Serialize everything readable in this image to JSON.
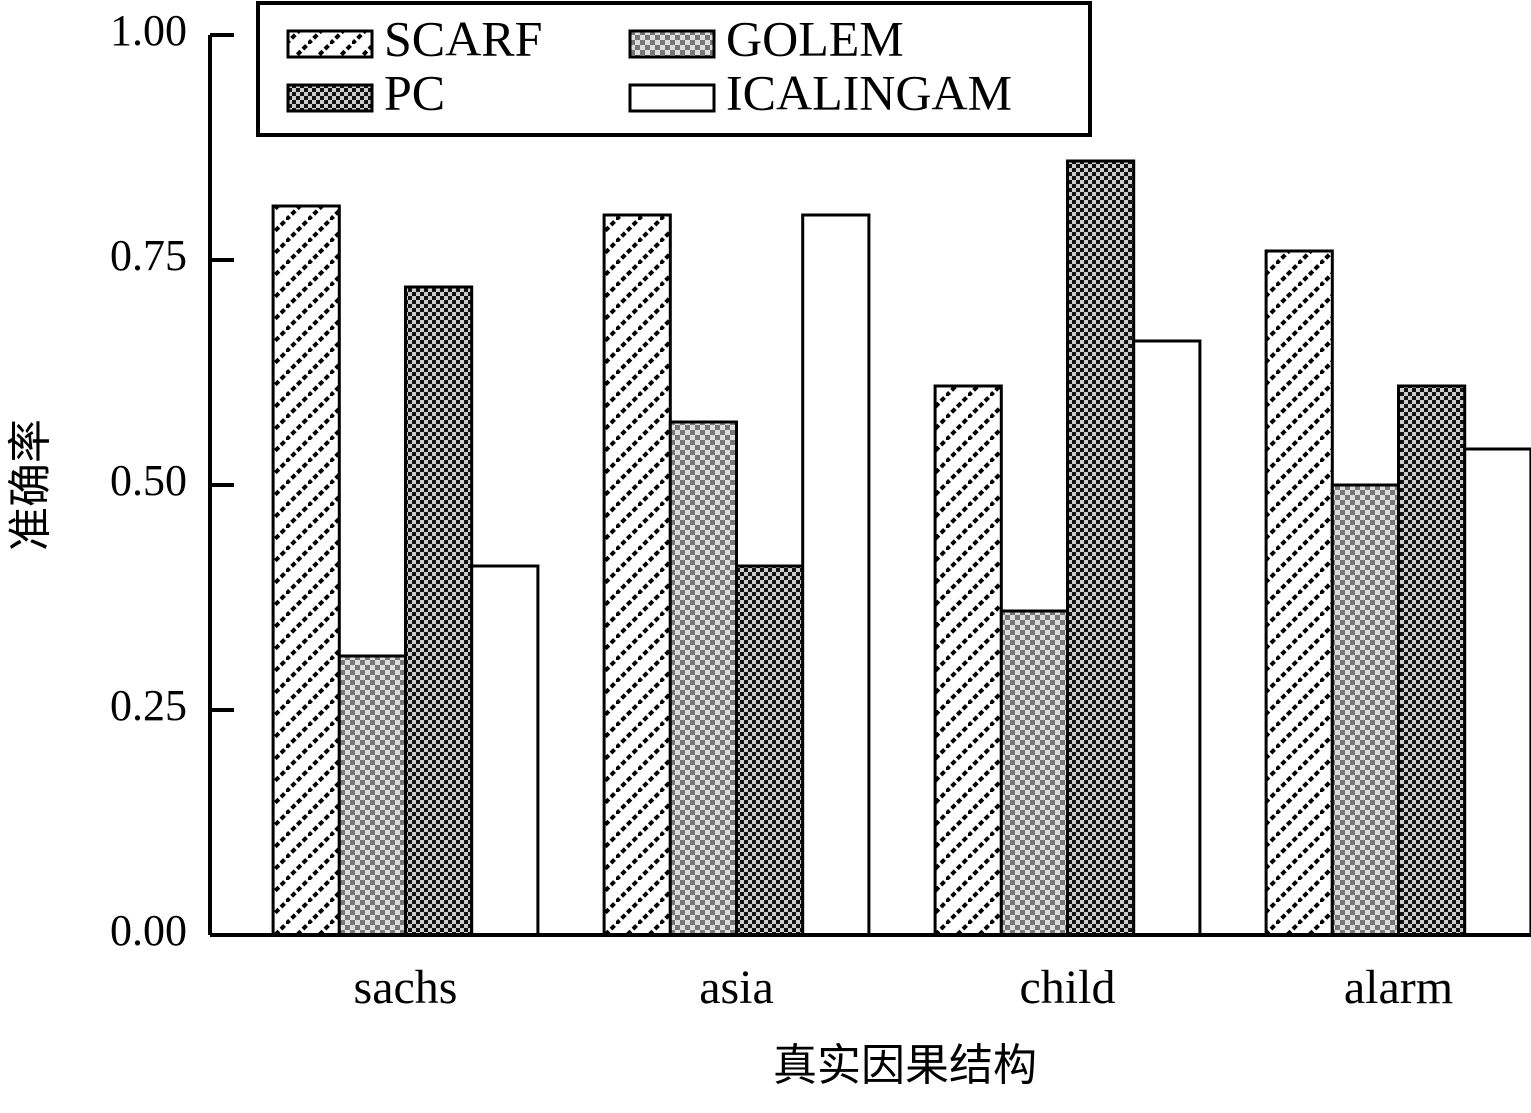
{
  "chart_data": {
    "type": "bar",
    "x_label": "真实因果结构",
    "y_label": "准确率",
    "categories": [
      "sachs",
      "asia",
      "child",
      "alarm"
    ],
    "series": [
      {
        "name": "SCARF",
        "color": "#000000",
        "pattern": "diagonal",
        "values": [
          0.81,
          0.8,
          0.61,
          0.76
        ]
      },
      {
        "name": "GOLEM",
        "color": "#777777",
        "pattern": "checker",
        "values": [
          0.31,
          0.57,
          0.36,
          0.5
        ]
      },
      {
        "name": "PC",
        "color": "#000000",
        "pattern": "dense-checker",
        "values": [
          0.72,
          0.41,
          0.86,
          0.61
        ]
      },
      {
        "name": "ICALINGAM",
        "color": "#ffffff",
        "pattern": "none",
        "values": [
          0.41,
          0.8,
          0.66,
          0.54
        ]
      }
    ],
    "ylim": [
      0,
      1
    ],
    "yticks": [
      {
        "value": 0,
        "label": "0.00"
      },
      {
        "value": 0.25,
        "label": "0.25"
      },
      {
        "value": 0.5,
        "label": "0.50"
      },
      {
        "value": 0.75,
        "label": "0.75"
      },
      {
        "value": 1,
        "label": "1.00"
      }
    ],
    "legend": "top-left"
  }
}
